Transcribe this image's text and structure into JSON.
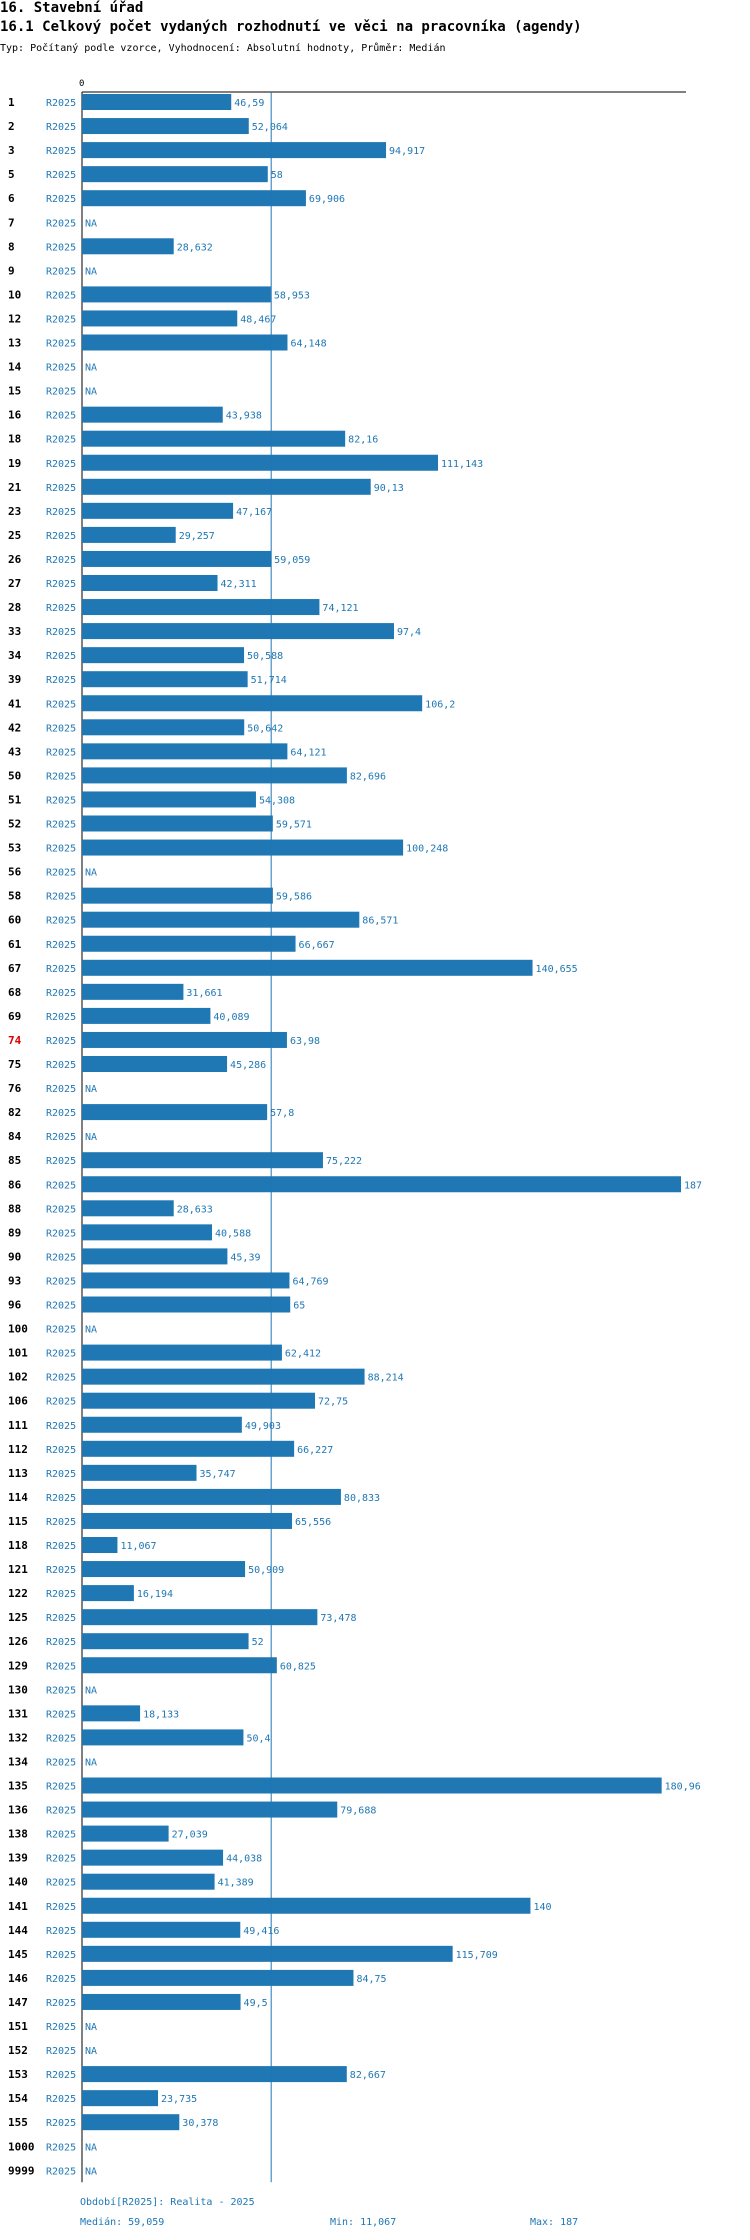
{
  "header": {
    "title": "16. Stavební úřad",
    "subtitle": "16.1 Celkový počet vydaných rozhodnutí ve věci na pracovníka (agendy)",
    "type_line": "Typ: Počítaný podle vzorce, Vyhodnocení: Absolutní hodnoty, Průměr: Medián"
  },
  "footer": {
    "period": "Období[R2025]: Realita - 2025",
    "median": "Medián: 59,059",
    "min": "Min: 11,067",
    "max": "Max: 187"
  },
  "colors": {
    "bar": "#1f77b4",
    "highlight_label": "#e00000"
  },
  "chart_data": {
    "type": "bar",
    "orientation": "horizontal",
    "title": "16.1 Celkový počet vydaných rozhodnutí ve věci na pracovníka (agendy)",
    "xlim": [
      0,
      187
    ],
    "x_tick_labels": [
      "0"
    ],
    "median": 59.059,
    "period_label": "R2025",
    "highlight": "74",
    "categories": [
      "1",
      "2",
      "3",
      "5",
      "6",
      "7",
      "8",
      "9",
      "10",
      "12",
      "13",
      "14",
      "15",
      "16",
      "18",
      "19",
      "21",
      "23",
      "25",
      "26",
      "27",
      "28",
      "33",
      "34",
      "39",
      "41",
      "42",
      "43",
      "50",
      "51",
      "52",
      "53",
      "56",
      "58",
      "60",
      "61",
      "67",
      "68",
      "69",
      "74",
      "75",
      "76",
      "82",
      "84",
      "85",
      "86",
      "88",
      "89",
      "90",
      "93",
      "96",
      "100",
      "101",
      "102",
      "106",
      "111",
      "112",
      "113",
      "114",
      "115",
      "118",
      "121",
      "122",
      "125",
      "126",
      "129",
      "130",
      "131",
      "132",
      "134",
      "135",
      "136",
      "138",
      "139",
      "140",
      "141",
      "144",
      "145",
      "146",
      "147",
      "151",
      "152",
      "153",
      "154",
      "155",
      "1000",
      "9999"
    ],
    "values": [
      46.59,
      52.064,
      94.917,
      58,
      69.906,
      null,
      28.632,
      null,
      58.953,
      48.467,
      64.148,
      null,
      null,
      43.938,
      82.16,
      111.143,
      90.13,
      47.167,
      29.257,
      59.059,
      42.311,
      74.121,
      97.4,
      50.588,
      51.714,
      106.2,
      50.642,
      64.121,
      82.696,
      54.308,
      59.571,
      100.248,
      null,
      59.586,
      86.571,
      66.667,
      140.655,
      31.661,
      40.089,
      63.98,
      45.286,
      null,
      57.8,
      null,
      75.222,
      187,
      28.633,
      40.588,
      45.39,
      64.769,
      65,
      null,
      62.412,
      88.214,
      72.75,
      49.903,
      66.227,
      35.747,
      80.833,
      65.556,
      11.067,
      50.909,
      16.194,
      73.478,
      52,
      60.825,
      null,
      18.133,
      50.4,
      null,
      180.96,
      79.688,
      27.039,
      44.038,
      41.389,
      140,
      49.416,
      115.709,
      84.75,
      49.5,
      null,
      null,
      82.667,
      23.735,
      30.378,
      null,
      null
    ],
    "value_labels": [
      "46,59",
      "52,064",
      "94,917",
      "58",
      "69,906",
      "NA",
      "28,632",
      "NA",
      "58,953",
      "48,467",
      "64,148",
      "NA",
      "NA",
      "43,938",
      "82,16",
      "111,143",
      "90,13",
      "47,167",
      "29,257",
      "59,059",
      "42,311",
      "74,121",
      "97,4",
      "50,588",
      "51,714",
      "106,2",
      "50,642",
      "64,121",
      "82,696",
      "54,308",
      "59,571",
      "100,248",
      "NA",
      "59,586",
      "86,571",
      "66,667",
      "140,655",
      "31,661",
      "40,089",
      "63,98",
      "45,286",
      "NA",
      "57,8",
      "NA",
      "75,222",
      "187",
      "28,633",
      "40,588",
      "45,39",
      "64,769",
      "65",
      "NA",
      "62,412",
      "88,214",
      "72,75",
      "49,903",
      "66,227",
      "35,747",
      "80,833",
      "65,556",
      "11,067",
      "50,909",
      "16,194",
      "73,478",
      "52",
      "60,825",
      "NA",
      "18,133",
      "50,4",
      "NA",
      "180,96",
      "79,688",
      "27,039",
      "44,038",
      "41,389",
      "140",
      "49,416",
      "115,709",
      "84,75",
      "49,5",
      "NA",
      "NA",
      "82,667",
      "23,735",
      "30,378",
      "NA",
      "NA"
    ]
  }
}
